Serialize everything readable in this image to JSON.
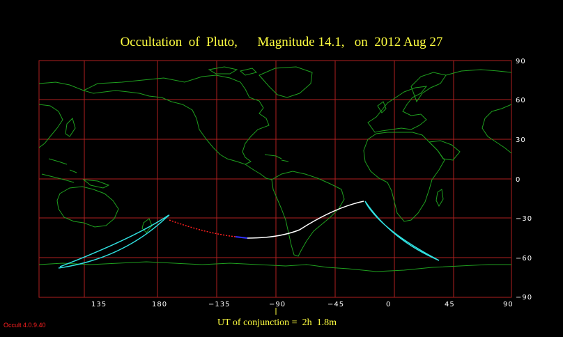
{
  "title": "Occultation  of  Pluto,      Magnitude 14.1,   on  2012 Aug 27",
  "colors": {
    "background": "#000000",
    "grid": "#b02020",
    "coastline": "#1fa01f",
    "path_day": "#ffffff",
    "path_night": "#ff2020",
    "path_twilight": "#3030ff",
    "limits": "#30e0e0",
    "title_text": "#ffff40",
    "tick_text": "#ffffff",
    "version_text": "#ff2020"
  },
  "axes": {
    "x_ticks": [
      "135",
      "180",
      "−135",
      "−90",
      "−45",
      "0",
      "45",
      "90"
    ],
    "y_ticks": [
      "90",
      "60",
      "30",
      "0",
      "−30",
      "−60",
      "−90"
    ]
  },
  "ut_label": "UT of conjunction =  2h  1.8m",
  "version": "Occult 4.0.9.40"
}
